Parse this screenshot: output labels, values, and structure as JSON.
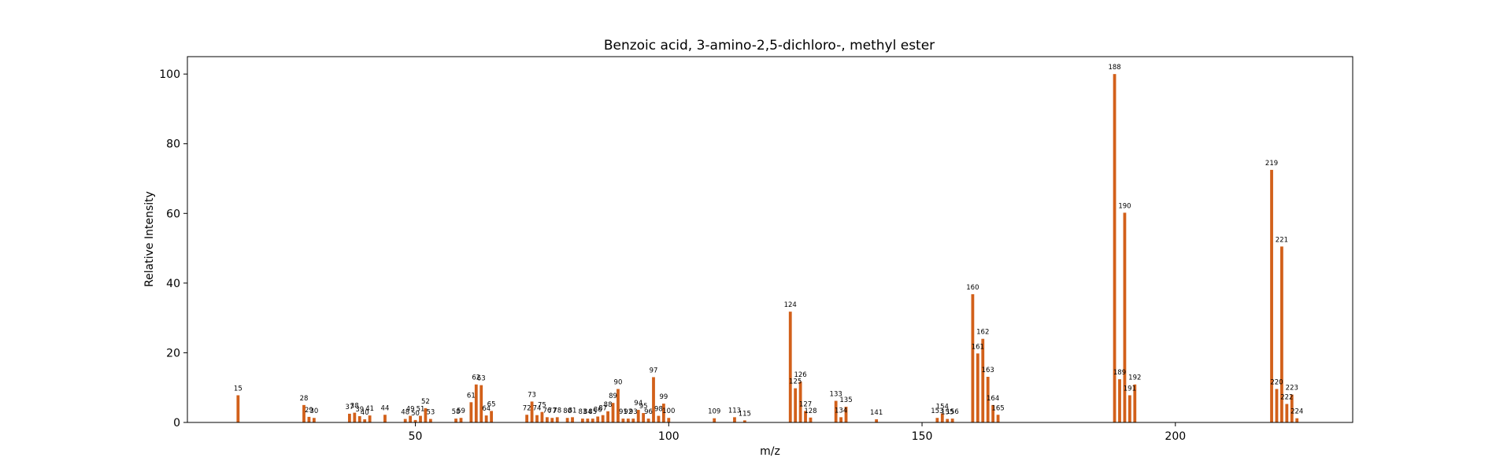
{
  "chart_data": {
    "type": "bar",
    "title": "Benzoic acid, 3-amino-2,5-dichloro-, methyl ester",
    "xlabel": "m/z",
    "ylabel": "Relative Intensity",
    "xlim": [
      5,
      235
    ],
    "ylim": [
      0,
      105
    ],
    "xticks": [
      50,
      100,
      150,
      200
    ],
    "yticks": [
      0,
      20,
      40,
      60,
      80,
      100
    ],
    "grid": false,
    "bar_color": "#d2601a",
    "peaks": [
      {
        "mz": 15,
        "intensity": 7.8
      },
      {
        "mz": 28,
        "intensity": 5.0
      },
      {
        "mz": 29,
        "intensity": 1.6
      },
      {
        "mz": 30,
        "intensity": 1.3
      },
      {
        "mz": 37,
        "intensity": 2.5
      },
      {
        "mz": 38,
        "intensity": 2.8
      },
      {
        "mz": 39,
        "intensity": 1.8
      },
      {
        "mz": 40,
        "intensity": 0.9
      },
      {
        "mz": 41,
        "intensity": 2.0
      },
      {
        "mz": 44,
        "intensity": 2.2
      },
      {
        "mz": 48,
        "intensity": 1.0
      },
      {
        "mz": 49,
        "intensity": 1.9
      },
      {
        "mz": 50,
        "intensity": 0.7
      },
      {
        "mz": 51,
        "intensity": 1.9
      },
      {
        "mz": 52,
        "intensity": 4.1
      },
      {
        "mz": 53,
        "intensity": 1.0
      },
      {
        "mz": 58,
        "intensity": 1.1
      },
      {
        "mz": 59,
        "intensity": 1.3
      },
      {
        "mz": 61,
        "intensity": 5.8
      },
      {
        "mz": 62,
        "intensity": 10.9
      },
      {
        "mz": 63,
        "intensity": 10.7
      },
      {
        "mz": 64,
        "intensity": 2.0
      },
      {
        "mz": 65,
        "intensity": 3.3
      },
      {
        "mz": 72,
        "intensity": 2.2
      },
      {
        "mz": 73,
        "intensity": 6.0
      },
      {
        "mz": 74,
        "intensity": 2.1
      },
      {
        "mz": 75,
        "intensity": 3.0
      },
      {
        "mz": 76,
        "intensity": 1.5
      },
      {
        "mz": 77,
        "intensity": 1.3
      },
      {
        "mz": 78,
        "intensity": 1.5
      },
      {
        "mz": 80,
        "intensity": 1.3
      },
      {
        "mz": 81,
        "intensity": 1.5
      },
      {
        "mz": 83,
        "intensity": 1.1
      },
      {
        "mz": 84,
        "intensity": 1.1
      },
      {
        "mz": 85,
        "intensity": 1.1
      },
      {
        "mz": 86,
        "intensity": 1.7
      },
      {
        "mz": 87,
        "intensity": 2.1
      },
      {
        "mz": 88,
        "intensity": 3.2
      },
      {
        "mz": 89,
        "intensity": 5.6
      },
      {
        "mz": 90,
        "intensity": 9.6
      },
      {
        "mz": 91,
        "intensity": 1.1
      },
      {
        "mz": 92,
        "intensity": 1.1
      },
      {
        "mz": 93,
        "intensity": 1.1
      },
      {
        "mz": 94,
        "intensity": 3.6
      },
      {
        "mz": 95,
        "intensity": 2.7
      },
      {
        "mz": 96,
        "intensity": 1.1
      },
      {
        "mz": 97,
        "intensity": 13.0
      },
      {
        "mz": 98,
        "intensity": 1.9
      },
      {
        "mz": 99,
        "intensity": 5.4
      },
      {
        "mz": 100,
        "intensity": 1.3
      },
      {
        "mz": 109,
        "intensity": 1.2
      },
      {
        "mz": 113,
        "intensity": 1.5
      },
      {
        "mz": 115,
        "intensity": 0.6
      },
      {
        "mz": 124,
        "intensity": 31.8
      },
      {
        "mz": 125,
        "intensity": 9.8
      },
      {
        "mz": 126,
        "intensity": 11.7
      },
      {
        "mz": 127,
        "intensity": 3.3
      },
      {
        "mz": 128,
        "intensity": 1.4
      },
      {
        "mz": 133,
        "intensity": 6.2
      },
      {
        "mz": 134,
        "intensity": 1.5
      },
      {
        "mz": 135,
        "intensity": 4.5
      },
      {
        "mz": 141,
        "intensity": 0.9
      },
      {
        "mz": 153,
        "intensity": 1.3
      },
      {
        "mz": 154,
        "intensity": 2.6
      },
      {
        "mz": 155,
        "intensity": 1.0
      },
      {
        "mz": 156,
        "intensity": 1.1
      },
      {
        "mz": 160,
        "intensity": 36.8
      },
      {
        "mz": 161,
        "intensity": 19.8
      },
      {
        "mz": 162,
        "intensity": 24.0
      },
      {
        "mz": 163,
        "intensity": 13.1
      },
      {
        "mz": 164,
        "intensity": 5.0
      },
      {
        "mz": 165,
        "intensity": 2.2
      },
      {
        "mz": 188,
        "intensity": 100.0
      },
      {
        "mz": 189,
        "intensity": 12.4
      },
      {
        "mz": 190,
        "intensity": 60.2
      },
      {
        "mz": 191,
        "intensity": 7.8
      },
      {
        "mz": 192,
        "intensity": 10.9
      },
      {
        "mz": 219,
        "intensity": 72.5
      },
      {
        "mz": 220,
        "intensity": 9.6
      },
      {
        "mz": 221,
        "intensity": 50.5
      },
      {
        "mz": 222,
        "intensity": 5.3
      },
      {
        "mz": 223,
        "intensity": 8.0
      },
      {
        "mz": 224,
        "intensity": 1.2
      }
    ]
  }
}
